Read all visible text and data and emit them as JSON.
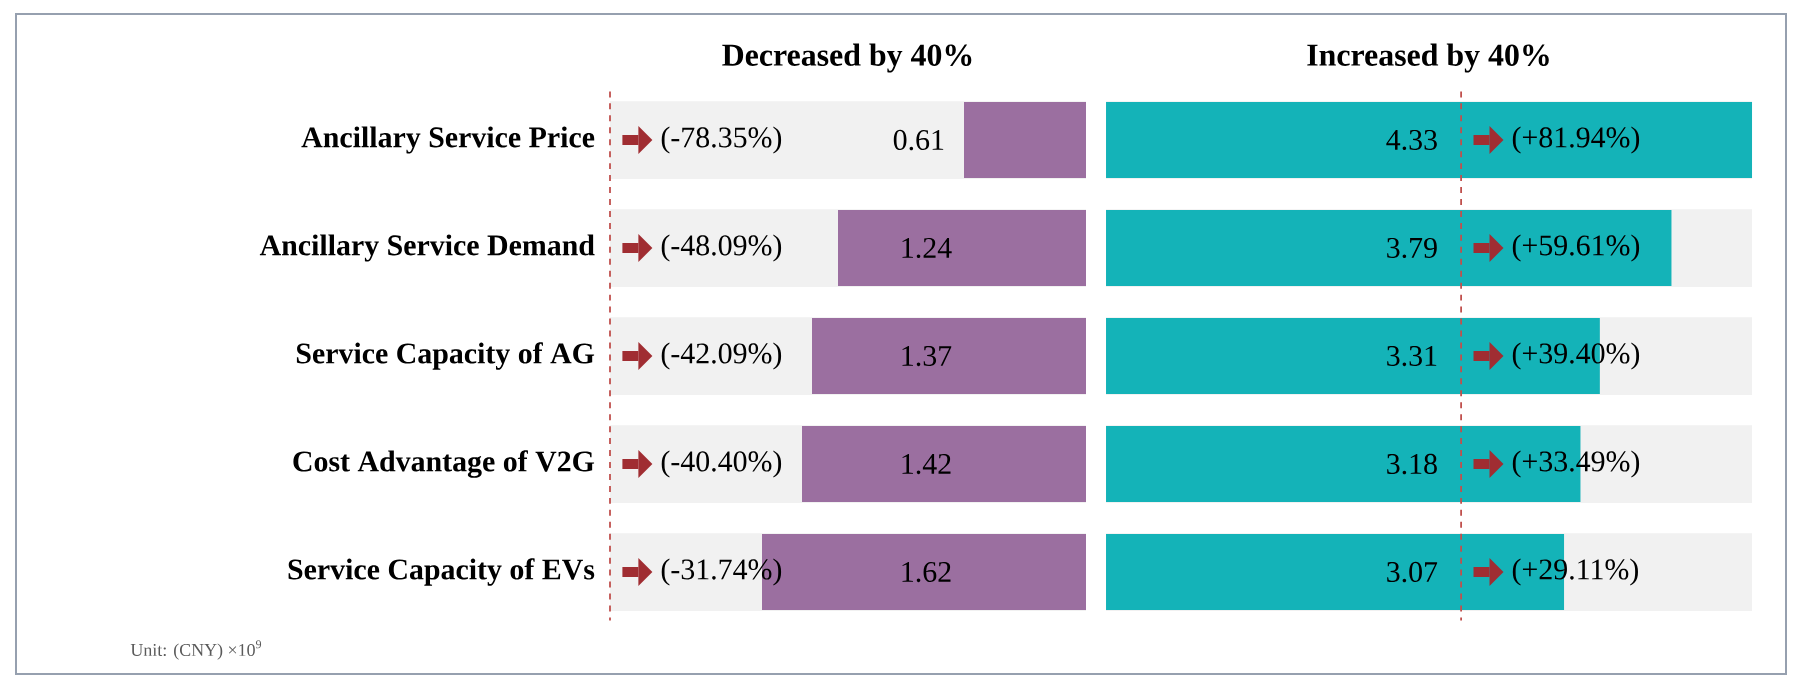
{
  "chart_data": [
    {
      "type": "bar",
      "orientation": "horizontal",
      "title": "Decreased by 40%",
      "categories": [
        "Ancillary Service Price",
        "Ancillary Service Demand",
        "Service Capacity of AG",
        "Cost Advantage of V2G",
        "Service Capacity of EVs"
      ],
      "values": [
        0.61,
        1.24,
        1.37,
        1.42,
        1.62
      ],
      "color": "#9b6fa0",
      "xlim": [
        2.38,
        0
      ],
      "data_labels": true,
      "tick_labels": "y",
      "ref_lines": [
        {
          "axis": "x",
          "value": 2.38,
          "color": "#c0504d",
          "line_style": "dashed"
        }
      ],
      "annotations": [
        "(-78.35%)",
        "(-48.09%)",
        "(-42.09%)",
        "(-40.40%)",
        "(-31.74%)",
        "Unit: (CNY)  ×10$^{9}$"
      ]
    },
    {
      "type": "bar",
      "orientation": "horizontal",
      "title": "Increased by 40%",
      "categories": [
        null,
        null,
        null,
        null,
        null
      ],
      "values": [
        4.33,
        3.79,
        3.31,
        3.18,
        3.07
      ],
      "color": "#14b3b8",
      "xlim": [
        0,
        4.33
      ],
      "data_labels": true,
      "tick_labels": false,
      "ref_lines": [
        {
          "axis": "x",
          "value": 2.38,
          "color": "#c0504d",
          "line_style": "dashed"
        }
      ],
      "annotations": [
        "(+81.94%)",
        "(+59.61%)",
        "(+39.40%)",
        "(+33.49%)",
        "(+29.11%)"
      ]
    }
  ]
}
